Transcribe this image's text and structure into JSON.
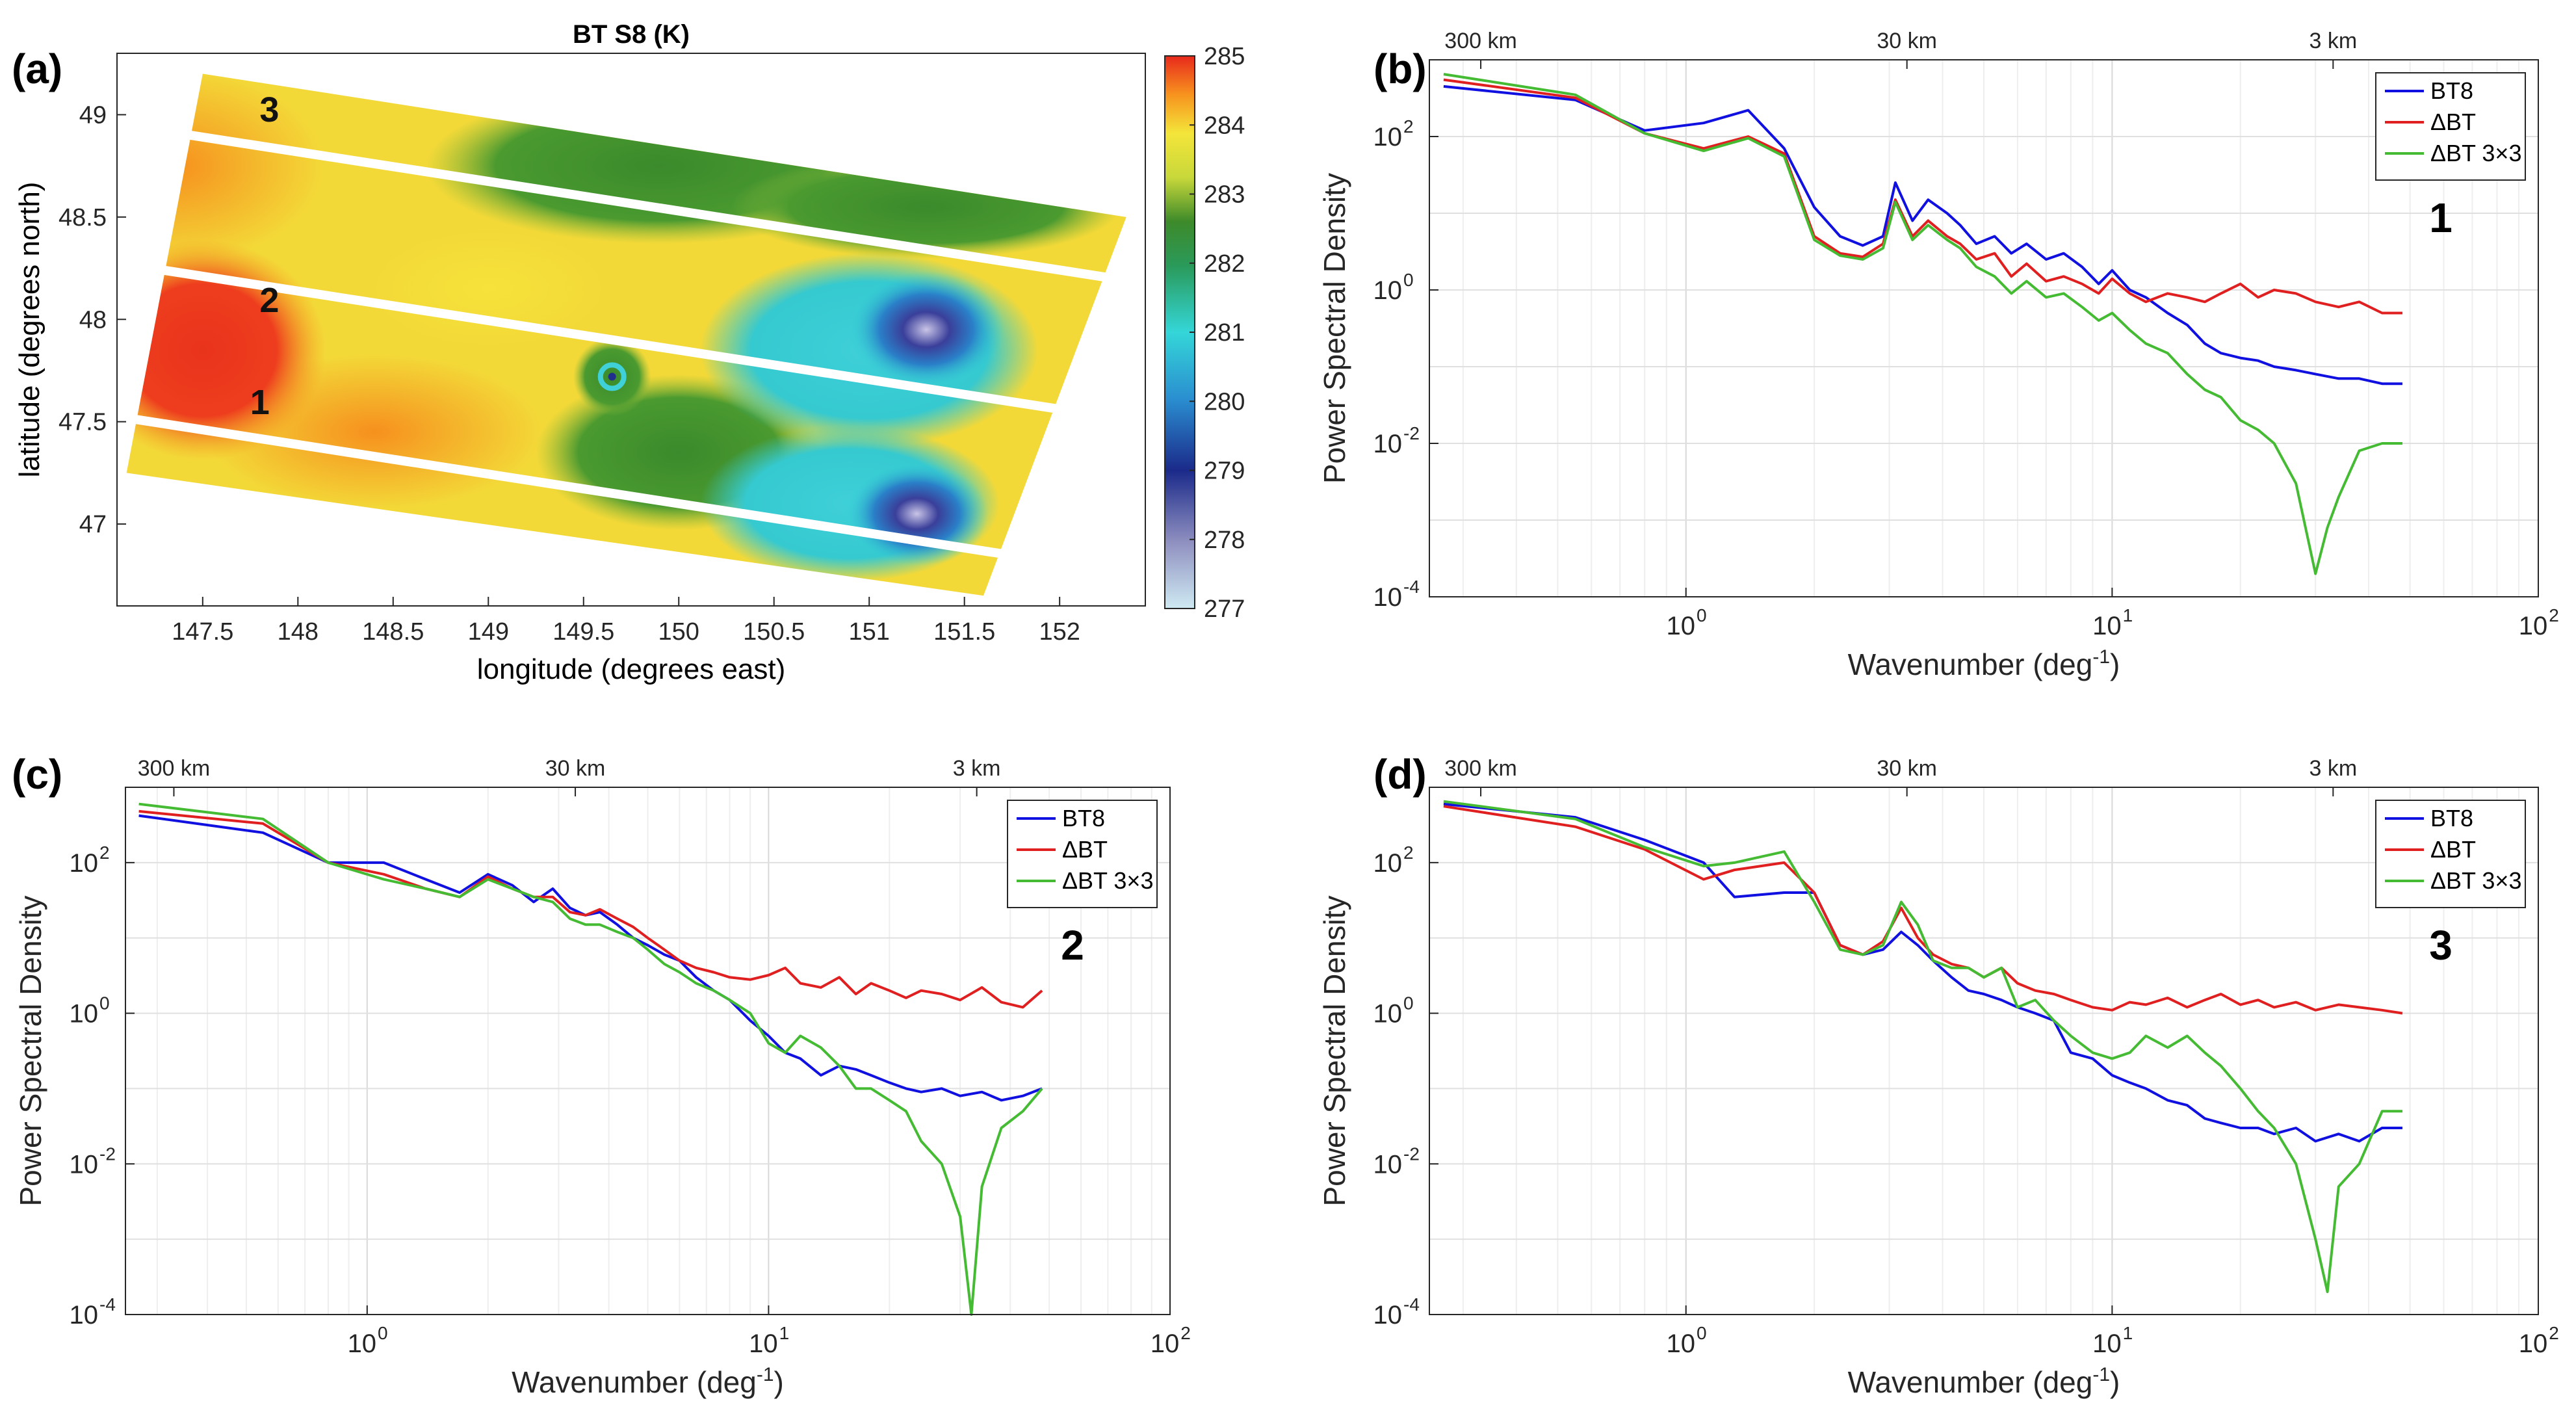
{
  "figure": {
    "panels": {
      "a": {
        "tag": "(a)",
        "title": "BT S8 (K)",
        "xlabel": "longitude (degrees east)",
        "ylabel": "latitude (degrees north)",
        "stripe_labels": [
          "1",
          "2",
          "3"
        ]
      },
      "b": {
        "tag": "(b)",
        "region_label": "1"
      },
      "c": {
        "tag": "(c)",
        "region_label": "2"
      },
      "d": {
        "tag": "(d)",
        "region_label": "3"
      }
    },
    "spectra_common": {
      "xlabel": "Wavenumber (deg",
      "xlabel_sup": "-1",
      "xlabel_end": ")",
      "ylabel": "Power Spectral Density",
      "top_ticks": [
        "300 km",
        "30 km",
        "3 km"
      ],
      "legend": [
        "BT8",
        "ΔBT",
        "ΔBT 3×3"
      ]
    }
  },
  "chart_data": [
    {
      "type": "heatmap",
      "panel": "a",
      "title": "BT S8 (K)",
      "xlabel": "longitude (degrees east)",
      "ylabel": "latitude (degrees north)",
      "xlim": [
        147.05,
        152.45
      ],
      "ylim": [
        46.6,
        49.3
      ],
      "xticks": [
        147.5,
        148,
        148.5,
        149,
        149.5,
        150,
        150.5,
        151,
        151.5,
        152
      ],
      "yticks": [
        47,
        47.5,
        48,
        48.5,
        49
      ],
      "colorbar": {
        "label": "K",
        "range": [
          277,
          285
        ],
        "ticks": [
          277,
          278,
          279,
          280,
          281,
          282,
          283,
          284,
          285
        ]
      },
      "swath_corners": [
        [
          147.5,
          49.2
        ],
        [
          152.35,
          48.5
        ],
        [
          151.6,
          46.65
        ],
        [
          147.1,
          47.25
        ]
      ],
      "stripe_labels": [
        {
          "label": "1",
          "lon": 147.8,
          "lat": 47.6
        },
        {
          "label": "2",
          "lon": 147.85,
          "lat": 48.1
        },
        {
          "label": "3",
          "lon": 147.85,
          "lat": 49.03
        }
      ],
      "features": [
        {
          "name": "warm core",
          "lon": 147.4,
          "lat": 47.85,
          "value": 285
        },
        {
          "name": "eddy",
          "lon": 149.65,
          "lat": 47.72,
          "value": 280
        },
        {
          "name": "cold eddy north",
          "lon": 151.3,
          "lat": 47.95,
          "value": 278
        },
        {
          "name": "cold eddy south",
          "lon": 151.2,
          "lat": 47.05,
          "value": 277.5
        }
      ]
    },
    {
      "type": "line",
      "panel": "b",
      "region": "1",
      "xscale": "log",
      "yscale": "log",
      "xlim": [
        0.25,
        100
      ],
      "ylim": [
        0.0001,
        1000
      ],
      "top_ticks": [
        {
          "label": "300 km",
          "x": 0.33
        },
        {
          "label": "30 km",
          "x": 3.3
        },
        {
          "label": "3 km",
          "x": 33
        }
      ],
      "series": [
        {
          "name": "BT8",
          "color": "#1010e0",
          "x": [
            0.27,
            0.55,
            0.8,
            1.1,
            1.4,
            1.7,
            2.0,
            2.3,
            2.6,
            2.9,
            3.1,
            3.4,
            3.7,
            4.1,
            4.4,
            4.8,
            5.3,
            5.8,
            6.3,
            7,
            7.7,
            8.5,
            9.3,
            10,
            11,
            12,
            13.5,
            15,
            16.5,
            18,
            20,
            22,
            24,
            27,
            30,
            34,
            38,
            43,
            48
          ],
          "y": [
            450,
            300,
            120,
            150,
            220,
            70,
            12,
            5,
            3.8,
            5,
            25,
            8,
            15,
            10,
            7,
            4,
            5,
            3,
            4,
            2.5,
            3,
            2,
            1.2,
            1.8,
            1,
            0.8,
            0.5,
            0.35,
            0.2,
            0.15,
            0.13,
            0.12,
            0.1,
            0.09,
            0.08,
            0.07,
            0.07,
            0.06,
            0.06
          ]
        },
        {
          "name": "ΔBT",
          "color": "#e02020",
          "x": [
            0.27,
            0.55,
            0.8,
            1.1,
            1.4,
            1.7,
            2.0,
            2.3,
            2.6,
            2.9,
            3.1,
            3.4,
            3.7,
            4.1,
            4.4,
            4.8,
            5.3,
            5.8,
            6.3,
            7,
            7.7,
            8.5,
            9.3,
            10,
            11,
            12,
            13.5,
            15,
            16.5,
            18,
            20,
            22,
            24,
            27,
            30,
            34,
            38,
            43,
            48
          ],
          "y": [
            550,
            320,
            110,
            70,
            100,
            60,
            5,
            3,
            2.7,
            4,
            15,
            5,
            8,
            5,
            4,
            2.5,
            3,
            1.5,
            2.2,
            1.3,
            1.5,
            1.2,
            0.9,
            1.4,
            0.9,
            0.7,
            0.9,
            0.8,
            0.7,
            0.9,
            1.2,
            0.8,
            1.0,
            0.9,
            0.7,
            0.6,
            0.7,
            0.5,
            0.5
          ]
        },
        {
          "name": "ΔBT 3×3",
          "color": "#44bb33",
          "x": [
            0.27,
            0.55,
            0.8,
            1.1,
            1.4,
            1.7,
            2.0,
            2.3,
            2.6,
            2.9,
            3.1,
            3.4,
            3.7,
            4.1,
            4.4,
            4.8,
            5.3,
            5.8,
            6.3,
            7,
            7.7,
            8.5,
            9.3,
            10,
            11,
            12,
            13.5,
            15,
            16.5,
            18,
            20,
            22,
            24,
            27,
            30,
            32,
            34,
            38,
            43,
            48
          ],
          "y": [
            650,
            350,
            110,
            65,
            95,
            55,
            4.5,
            2.8,
            2.5,
            3.5,
            14,
            4.5,
            7,
            4.5,
            3.5,
            2,
            1.5,
            0.9,
            1.3,
            0.8,
            0.9,
            0.6,
            0.4,
            0.5,
            0.3,
            0.2,
            0.15,
            0.08,
            0.05,
            0.04,
            0.02,
            0.015,
            0.01,
            0.003,
            0.0002,
            0.0008,
            0.002,
            0.008,
            0.01,
            0.01
          ]
        }
      ]
    },
    {
      "type": "line",
      "panel": "c",
      "region": "2",
      "xscale": "log",
      "yscale": "log",
      "xlim": [
        0.25,
        100
      ],
      "ylim": [
        0.0001,
        1000
      ],
      "top_ticks": [
        {
          "label": "300 km",
          "x": 0.33
        },
        {
          "label": "30 km",
          "x": 3.3
        },
        {
          "label": "3 km",
          "x": 33
        }
      ],
      "series": [
        {
          "name": "BT8",
          "color": "#1010e0",
          "x": [
            0.27,
            0.55,
            0.8,
            1.1,
            1.4,
            1.7,
            2.0,
            2.3,
            2.6,
            2.9,
            3.2,
            3.5,
            3.8,
            4.2,
            4.6,
            5.0,
            5.5,
            6,
            6.6,
            7.3,
            8,
            9,
            10,
            11,
            12,
            13.5,
            15,
            16.5,
            18,
            20,
            22,
            24,
            27,
            30,
            34,
            38,
            43,
            48
          ],
          "y": [
            420,
            250,
            100,
            100,
            60,
            40,
            70,
            50,
            30,
            45,
            25,
            20,
            22,
            15,
            10,
            8,
            6,
            5,
            3,
            2,
            1.5,
            0.8,
            0.5,
            0.3,
            0.25,
            0.15,
            0.2,
            0.18,
            0.15,
            0.12,
            0.1,
            0.09,
            0.1,
            0.08,
            0.09,
            0.07,
            0.08,
            0.1
          ]
        },
        {
          "name": "ΔBT",
          "color": "#e02020",
          "x": [
            0.27,
            0.55,
            0.8,
            1.1,
            1.4,
            1.7,
            2.0,
            2.3,
            2.6,
            2.9,
            3.2,
            3.5,
            3.8,
            4.2,
            4.6,
            5.0,
            5.5,
            6,
            6.6,
            7.3,
            8,
            9,
            10,
            11,
            12,
            13.5,
            15,
            16.5,
            18,
            20,
            22,
            24,
            27,
            30,
            34,
            38,
            43,
            48
          ],
          "y": [
            480,
            330,
            100,
            70,
            45,
            35,
            65,
            45,
            35,
            35,
            22,
            20,
            24,
            18,
            14,
            10,
            7,
            5,
            4,
            3.5,
            3,
            2.8,
            3.2,
            4,
            2.5,
            2.2,
            3,
            1.8,
            2.5,
            2,
            1.6,
            2,
            1.8,
            1.5,
            2.2,
            1.4,
            1.2,
            2.0
          ]
        },
        {
          "name": "ΔBT 3×3",
          "color": "#44bb33",
          "x": [
            0.27,
            0.55,
            0.8,
            1.1,
            1.4,
            1.7,
            2.0,
            2.3,
            2.6,
            2.9,
            3.2,
            3.5,
            3.8,
            4.2,
            4.6,
            5.0,
            5.5,
            6,
            6.6,
            7.3,
            8,
            9,
            10,
            11,
            12,
            13.5,
            15,
            16.5,
            18,
            20,
            22,
            24,
            27,
            30,
            32,
            34,
            38,
            43,
            48
          ],
          "y": [
            600,
            380,
            100,
            60,
            45,
            35,
            60,
            45,
            35,
            30,
            18,
            15,
            15,
            12,
            10,
            7,
            4.5,
            3.5,
            2.5,
            2,
            1.5,
            1,
            0.4,
            0.3,
            0.5,
            0.35,
            0.2,
            0.1,
            0.1,
            0.07,
            0.05,
            0.02,
            0.01,
            0.002,
            0.0001,
            0.005,
            0.03,
            0.05,
            0.1
          ]
        }
      ]
    },
    {
      "type": "line",
      "panel": "d",
      "region": "3",
      "xscale": "log",
      "yscale": "log",
      "xlim": [
        0.25,
        100
      ],
      "ylim": [
        0.0001,
        1000
      ],
      "top_ticks": [
        {
          "label": "300 km",
          "x": 0.33
        },
        {
          "label": "30 km",
          "x": 3.3
        },
        {
          "label": "3 km",
          "x": 33
        }
      ],
      "series": [
        {
          "name": "BT8",
          "color": "#1010e0",
          "x": [
            0.27,
            0.55,
            0.8,
            1.1,
            1.3,
            1.7,
            2.0,
            2.3,
            2.6,
            2.9,
            3.2,
            3.5,
            3.8,
            4.2,
            4.6,
            5.0,
            5.5,
            6,
            6.6,
            7.3,
            8,
            9,
            10,
            11,
            12,
            13.5,
            15,
            16.5,
            18,
            20,
            22,
            24,
            27,
            30,
            34,
            38,
            43,
            48
          ],
          "y": [
            600,
            400,
            200,
            100,
            35,
            40,
            40,
            8,
            6,
            7,
            12,
            8,
            5,
            3,
            2,
            1.8,
            1.5,
            1.2,
            1,
            0.8,
            0.3,
            0.25,
            0.15,
            0.12,
            0.1,
            0.07,
            0.06,
            0.04,
            0.035,
            0.03,
            0.03,
            0.025,
            0.03,
            0.02,
            0.025,
            0.02,
            0.03,
            0.03
          ]
        },
        {
          "name": "ΔBT",
          "color": "#e02020",
          "x": [
            0.27,
            0.55,
            0.8,
            1.1,
            1.3,
            1.7,
            2.0,
            2.3,
            2.6,
            2.9,
            3.2,
            3.5,
            3.8,
            4.2,
            4.6,
            5.0,
            5.5,
            6,
            6.6,
            7.3,
            8,
            9,
            10,
            11,
            12,
            13.5,
            15,
            16.5,
            18,
            20,
            22,
            24,
            27,
            30,
            34,
            38,
            43,
            48
          ],
          "y": [
            560,
            300,
            150,
            60,
            80,
            100,
            40,
            8,
            6,
            9,
            25,
            10,
            6,
            4.5,
            4,
            3,
            4,
            2.5,
            2,
            1.8,
            1.5,
            1.2,
            1.1,
            1.4,
            1.3,
            1.6,
            1.2,
            1.5,
            1.8,
            1.3,
            1.5,
            1.2,
            1.4,
            1.1,
            1.3,
            1.2,
            1.1,
            1.0
          ]
        },
        {
          "name": "ΔBT 3×3",
          "color": "#44bb33",
          "x": [
            0.27,
            0.55,
            0.8,
            1.1,
            1.3,
            1.7,
            2.0,
            2.3,
            2.6,
            2.9,
            3.2,
            3.5,
            3.8,
            4.2,
            4.6,
            5.0,
            5.5,
            6,
            6.6,
            7.3,
            8,
            9,
            10,
            11,
            12,
            13.5,
            15,
            16.5,
            18,
            20,
            22,
            24,
            27,
            30,
            32,
            34,
            38,
            43,
            48
          ],
          "y": [
            650,
            380,
            160,
            90,
            100,
            140,
            30,
            7,
            6,
            8,
            30,
            15,
            5,
            4,
            4,
            3,
            4,
            1.2,
            1.5,
            0.8,
            0.5,
            0.3,
            0.25,
            0.3,
            0.5,
            0.35,
            0.5,
            0.3,
            0.2,
            0.1,
            0.05,
            0.03,
            0.01,
            0.001,
            0.0002,
            0.005,
            0.01,
            0.05,
            0.05
          ]
        }
      ]
    }
  ]
}
